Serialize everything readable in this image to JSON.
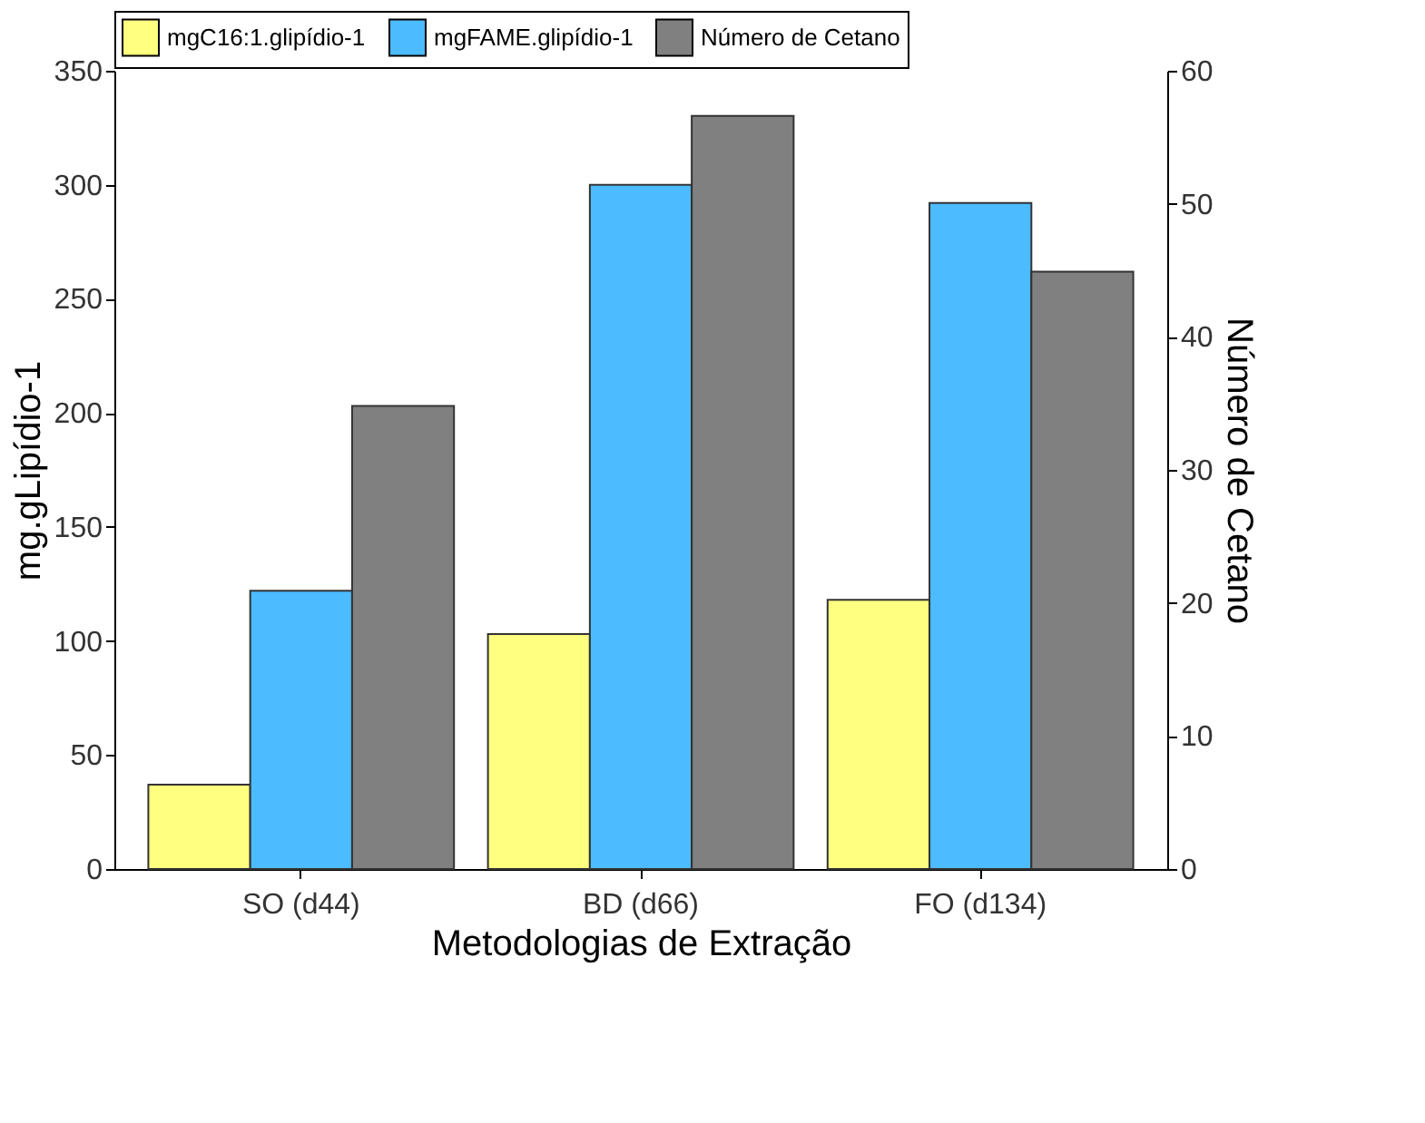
{
  "chart_data": {
    "type": "bar",
    "xlabel": "Metodologias de Extração",
    "ylabel": "mg.gLipídio-1",
    "y2label": "Número de Cetano",
    "categories": [
      "SO (d44)",
      "BD (d66)",
      "FO (d134)"
    ],
    "series": [
      {
        "name": "mgC16:1.glipídio-1",
        "color": "#ffff80",
        "values": [
          37,
          103,
          118
        ]
      },
      {
        "name": "mgFAME.glipídio-1",
        "color": "#4dbbff",
        "values": [
          122,
          300,
          292
        ]
      },
      {
        "name": "Número de Cetano",
        "color": "#808080",
        "values": [
          34.8,
          56.6,
          44.9
        ],
        "axis": "y2"
      }
    ],
    "ylim": [
      0,
      350
    ],
    "yticks": [
      0,
      50,
      100,
      150,
      200,
      250,
      300,
      350
    ],
    "y2lim": [
      0,
      60
    ],
    "y2ticks": [
      0,
      10,
      20,
      30,
      40,
      50,
      60
    ],
    "grid": false,
    "legend": "top"
  }
}
